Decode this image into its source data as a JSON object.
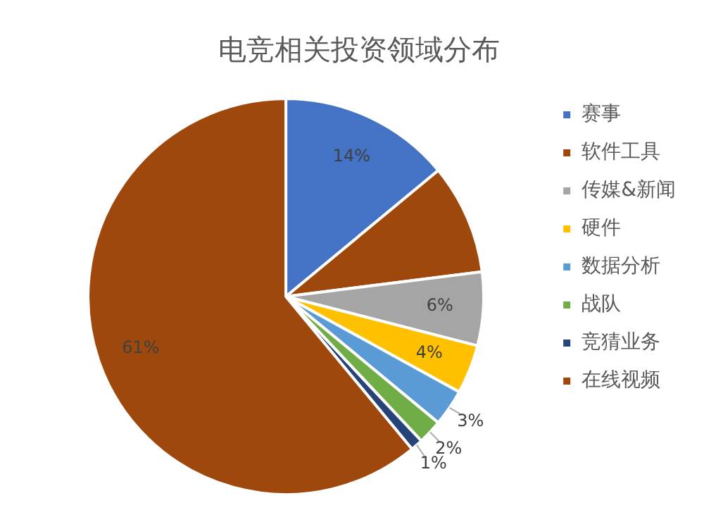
{
  "chart_data": {
    "type": "pie",
    "title": "电竞相关投资领域分布",
    "categories": [
      "赛事",
      "软件工具",
      "传媒&新闻",
      "硬件",
      "数据分析",
      "战队",
      "竞猜业务",
      "在线视频"
    ],
    "values": [
      14,
      9,
      6,
      4,
      3,
      2,
      1,
      61
    ],
    "colors": [
      "#4472c4",
      "#9e480e",
      "#a5a5a5",
      "#ffc000",
      "#5b9bd5",
      "#70ad47",
      "#264478",
      "#9e480e"
    ],
    "value_labels": [
      "14%",
      null,
      "6%",
      "4%",
      "3%",
      "2%",
      "1%",
      "61%"
    ],
    "legend": "right"
  }
}
